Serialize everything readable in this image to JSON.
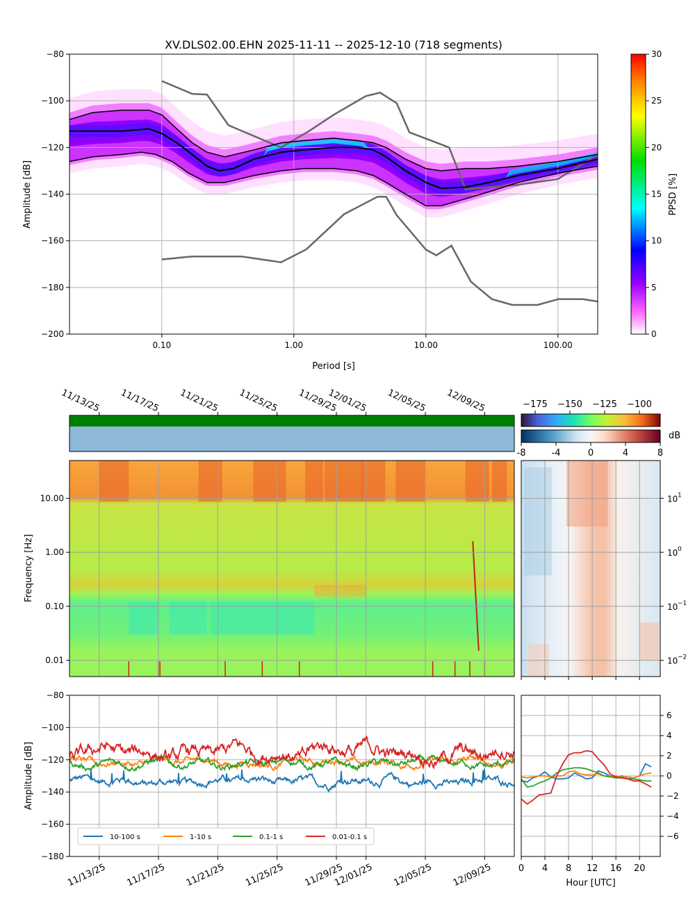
{
  "figure": {
    "title": "XV.DLS02.00.EHN   2025-11-11 -- 2025-12-10  (718 segments)"
  },
  "chart_data": [
    {
      "id": "ppsd",
      "type": "heatmap",
      "title": "XV.DLS02.00.EHN   2025-11-11 -- 2025-12-10  (718 segments)",
      "xlabel": "Period [s]",
      "ylabel": "Amplitude [dB]",
      "xscale": "log",
      "xlim": [
        0.02,
        200
      ],
      "ylim": [
        -200,
        -80
      ],
      "xticks": [
        {
          "v": 0.1,
          "label": "0.10"
        },
        {
          "v": 1,
          "label": "1.00"
        },
        {
          "v": 10,
          "label": "10.00"
        },
        {
          "v": 100,
          "label": "100.00"
        }
      ],
      "yticks": [
        -200,
        -180,
        -160,
        -140,
        -120,
        -100,
        -80
      ],
      "grid": true,
      "colorbar": {
        "label": "PPSD [%]",
        "min": 0,
        "max": 30,
        "ticks": [
          0,
          5,
          10,
          15,
          20,
          25,
          30
        ]
      },
      "mean_curve": [
        [
          0.02,
          -113
        ],
        [
          0.03,
          -113
        ],
        [
          0.05,
          -113
        ],
        [
          0.08,
          -112
        ],
        [
          0.1,
          -114
        ],
        [
          0.13,
          -118
        ],
        [
          0.17,
          -123
        ],
        [
          0.22,
          -128
        ],
        [
          0.27,
          -130
        ],
        [
          0.35,
          -129
        ],
        [
          0.5,
          -125
        ],
        [
          0.8,
          -122
        ],
        [
          1.2,
          -121
        ],
        [
          2,
          -120
        ],
        [
          3,
          -120
        ],
        [
          4,
          -121
        ],
        [
          5,
          -124
        ],
        [
          7,
          -130
        ],
        [
          10,
          -135
        ],
        [
          13,
          -137.5
        ],
        [
          20,
          -137
        ],
        [
          30,
          -135
        ],
        [
          50,
          -132
        ],
        [
          100,
          -129
        ],
        [
          200,
          -125
        ]
      ],
      "percentile_upper": [
        [
          0.02,
          -108
        ],
        [
          0.03,
          -105
        ],
        [
          0.05,
          -104
        ],
        [
          0.08,
          -104
        ],
        [
          0.1,
          -106
        ],
        [
          0.13,
          -112
        ],
        [
          0.17,
          -118
        ],
        [
          0.22,
          -122
        ],
        [
          0.3,
          -124
        ],
        [
          0.5,
          -121
        ],
        [
          0.8,
          -118
        ],
        [
          1.2,
          -117
        ],
        [
          2,
          -116
        ],
        [
          3,
          -117
        ],
        [
          4,
          -118
        ],
        [
          5,
          -120
        ],
        [
          7,
          -125
        ],
        [
          10,
          -129
        ],
        [
          13,
          -130
        ],
        [
          20,
          -129
        ],
        [
          30,
          -129
        ],
        [
          50,
          -128
        ],
        [
          100,
          -126
        ],
        [
          200,
          -123
        ]
      ],
      "percentile_lower": [
        [
          0.02,
          -126
        ],
        [
          0.03,
          -124
        ],
        [
          0.05,
          -123
        ],
        [
          0.07,
          -122
        ],
        [
          0.09,
          -123
        ],
        [
          0.12,
          -126
        ],
        [
          0.16,
          -131
        ],
        [
          0.22,
          -135
        ],
        [
          0.3,
          -135
        ],
        [
          0.5,
          -132
        ],
        [
          0.8,
          -130
        ],
        [
          1.2,
          -129
        ],
        [
          2,
          -129
        ],
        [
          3,
          -130
        ],
        [
          4,
          -132
        ],
        [
          5,
          -135
        ],
        [
          7,
          -140
        ],
        [
          10,
          -145
        ],
        [
          13,
          -145
        ],
        [
          20,
          -142
        ],
        [
          30,
          -139
        ],
        [
          50,
          -135
        ],
        [
          100,
          -131
        ],
        [
          200,
          -128
        ]
      ],
      "nhnm": [
        [
          0.1,
          -91.5
        ],
        [
          0.17,
          -97
        ],
        [
          0.22,
          -97.3
        ],
        [
          0.32,
          -110.5
        ],
        [
          0.8,
          -120
        ],
        [
          1.3,
          -113
        ],
        [
          2,
          -106
        ],
        [
          3.5,
          -98
        ],
        [
          4.5,
          -96.5
        ],
        [
          6,
          -101
        ],
        [
          7.5,
          -113.5
        ],
        [
          15,
          -120
        ],
        [
          20,
          -138
        ],
        [
          30,
          -137
        ],
        [
          50,
          -136
        ],
        [
          100,
          -133.5
        ],
        [
          200,
          -123
        ]
      ],
      "nlnm": [
        [
          0.1,
          -168
        ],
        [
          0.17,
          -166.7
        ],
        [
          0.4,
          -166.7
        ],
        [
          0.8,
          -169.2
        ],
        [
          1.24,
          -163.7
        ],
        [
          2.4,
          -148.6
        ],
        [
          4.3,
          -141.1
        ],
        [
          5,
          -141.1
        ],
        [
          6,
          -149
        ],
        [
          10,
          -163.8
        ],
        [
          12,
          -166.2
        ],
        [
          15.6,
          -162.1
        ],
        [
          21.9,
          -177.5
        ],
        [
          31.6,
          -185
        ],
        [
          45,
          -187.5
        ],
        [
          70,
          -187.5
        ],
        [
          101,
          -185
        ],
        [
          154,
          -185
        ],
        [
          200,
          -186
        ]
      ]
    },
    {
      "id": "spectrogram",
      "type": "heatmap",
      "ylabel": "Frequency [Hz]",
      "yscale": "log",
      "ylim": [
        0.005,
        50
      ],
      "yticks": [
        {
          "v": 0.01,
          "label": "0.01"
        },
        {
          "v": 0.1,
          "label": "0.10"
        },
        {
          "v": 1,
          "label": "1.00"
        },
        {
          "v": 10,
          "label": "10.00"
        }
      ],
      "x_date_ticks": [
        "11/13/25",
        "11/17/25",
        "11/21/25",
        "11/25/25",
        "11/29/25",
        "12/01/25",
        "12/05/25",
        "12/09/25"
      ],
      "x_tick_days": [
        2,
        6,
        10,
        14,
        18,
        20,
        24,
        28
      ],
      "xlim_days": [
        0,
        30
      ],
      "colorbar": {
        "ticks": [
          -175,
          -150,
          -125,
          -100
        ],
        "min": -185,
        "max": -85
      }
    },
    {
      "id": "diurnal",
      "type": "heatmap",
      "yscale": "log",
      "ylim": [
        0.005,
        50
      ],
      "yticks": [
        {
          "v": 0.01,
          "label": "10",
          "sup": "−2"
        },
        {
          "v": 0.1,
          "label": "10",
          "sup": "−1"
        },
        {
          "v": 1,
          "label": "10",
          "sup": "0"
        },
        {
          "v": 10,
          "label": "10",
          "sup": "1"
        }
      ],
      "colorbar": {
        "label": "dB",
        "min": -8,
        "max": 8,
        "ticks": [
          {
            "v": -8,
            "label": "-8"
          },
          {
            "v": -4,
            "label": "-4"
          },
          {
            "v": 0,
            "label": "0"
          },
          {
            "v": 4,
            "label": "4"
          },
          {
            "v": 8,
            "label": "8"
          }
        ]
      }
    },
    {
      "id": "timeseries",
      "type": "line",
      "ylabel": "Amplitude [dB]",
      "ylim": [
        -180,
        -80
      ],
      "yticks": [
        -180,
        -160,
        -140,
        -120,
        -100,
        -80
      ],
      "x_date_ticks": [
        "11/13/25",
        "11/17/25",
        "11/21/25",
        "11/25/25",
        "11/29/25",
        "12/01/25",
        "12/05/25",
        "12/09/25"
      ],
      "xlim_days": [
        0,
        30
      ],
      "legend": "lower-left",
      "series": [
        {
          "name": "10-100 s",
          "color": "#1f77b4",
          "base": -133.5,
          "amp": 3.2
        },
        {
          "name": "1-10 s",
          "color": "#ff7f0e",
          "base": -121.5,
          "amp": 3.0
        },
        {
          "name": "0.1-1 s",
          "color": "#2ca02c",
          "base": -122.5,
          "amp": 3.0
        },
        {
          "name": "0.01-0.1 s",
          "color": "#d62728",
          "base": -116,
          "amp": 6.0
        }
      ]
    },
    {
      "id": "hourly",
      "type": "line",
      "xlabel": "Hour [UTC]",
      "xlim": [
        0,
        23.5
      ],
      "ylim": [
        -8,
        8
      ],
      "xticks": [
        0,
        4,
        8,
        12,
        16,
        20
      ],
      "yticks": [
        {
          "v": -6,
          "label": "−6"
        },
        {
          "v": -4,
          "label": "−4"
        },
        {
          "v": -2,
          "label": "−2"
        },
        {
          "v": 0,
          "label": "0"
        },
        {
          "v": 2,
          "label": "2"
        },
        {
          "v": 4,
          "label": "4"
        },
        {
          "v": 6,
          "label": "6"
        }
      ],
      "x": [
        0,
        1,
        2,
        3,
        4,
        5,
        6,
        7,
        8,
        9,
        10,
        11,
        12,
        13,
        14,
        15,
        16,
        17,
        18,
        19,
        20,
        21,
        22
      ],
      "series": [
        {
          "name": "10-100 s",
          "color": "#1f77b4",
          "values": [
            -0.5,
            -0.6,
            -0.2,
            0.0,
            0.4,
            -0.1,
            -0.3,
            -0.3,
            -0.2,
            0.3,
            0.0,
            -0.3,
            -0.2,
            0.5,
            0.3,
            0.0,
            -0.2,
            0.0,
            -0.3,
            -0.2,
            0.0,
            1.2,
            0.9
          ]
        },
        {
          "name": "1-10 s",
          "color": "#ff7f0e",
          "values": [
            -0.1,
            -0.2,
            -0.1,
            0.0,
            0.0,
            -0.1,
            0.0,
            0.0,
            0.4,
            0.5,
            0.2,
            0.1,
            0.1,
            0.2,
            0.0,
            0.0,
            0.0,
            -0.1,
            -0.1,
            -0.2,
            0.0,
            0.2,
            0.3
          ]
        },
        {
          "name": "0.1-1 s",
          "color": "#2ca02c",
          "values": [
            -0.3,
            -1.1,
            -1.0,
            -0.7,
            -0.5,
            -0.2,
            0.3,
            0.6,
            0.7,
            0.8,
            0.8,
            0.7,
            0.5,
            0.3,
            0.0,
            -0.1,
            -0.2,
            -0.2,
            -0.3,
            -0.3,
            -0.4,
            -0.5,
            -0.5
          ]
        },
        {
          "name": "0.01-0.1 s",
          "color": "#d62728",
          "values": [
            -2.3,
            -2.8,
            -2.4,
            -1.9,
            -1.8,
            -1.7,
            0.0,
            1.2,
            2.1,
            2.3,
            2.3,
            2.5,
            2.4,
            1.7,
            1.1,
            0.2,
            -0.1,
            -0.2,
            -0.3,
            -0.5,
            -0.5,
            -0.8,
            -1.1
          ]
        }
      ]
    }
  ]
}
